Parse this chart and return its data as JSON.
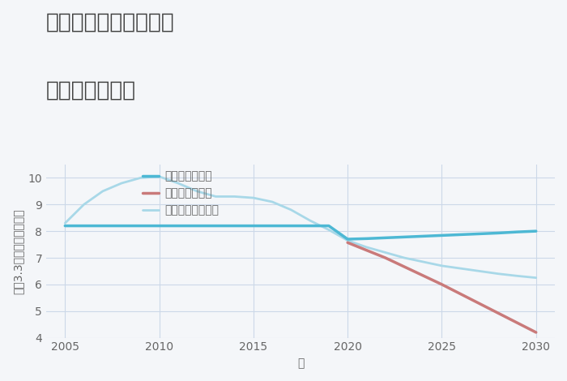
{
  "title_line1": "三重県鈴鹿市伊船町の",
  "title_line2": "土地の価格推移",
  "xlabel": "年",
  "ylabel": "坪（3.3㎡）単価（万円）",
  "background_color": "#f4f6f9",
  "plot_background": "#f4f6f9",
  "ylim": [
    4,
    10.5
  ],
  "xlim": [
    2004,
    2031
  ],
  "yticks": [
    4,
    5,
    6,
    7,
    8,
    9,
    10
  ],
  "xticks": [
    2005,
    2010,
    2015,
    2020,
    2025,
    2030
  ],
  "good_scenario": {
    "x": [
      2005,
      2006,
      2007,
      2008,
      2009,
      2010,
      2011,
      2012,
      2013,
      2014,
      2015,
      2016,
      2017,
      2018,
      2019,
      2020,
      2021,
      2022,
      2023,
      2024,
      2025,
      2026,
      2027,
      2028,
      2029,
      2030
    ],
    "y": [
      8.2,
      8.2,
      8.2,
      8.2,
      8.2,
      8.2,
      8.2,
      8.2,
      8.2,
      8.2,
      8.2,
      8.2,
      8.2,
      8.2,
      8.2,
      7.7,
      7.72,
      7.75,
      7.78,
      7.81,
      7.84,
      7.87,
      7.9,
      7.93,
      7.97,
      8.0
    ],
    "color": "#4db8d4",
    "linewidth": 2.5,
    "label": "グッドシナリオ"
  },
  "bad_scenario": {
    "x": [
      2020,
      2022,
      2025,
      2030
    ],
    "y": [
      7.57,
      7.0,
      6.0,
      4.2
    ],
    "color": "#c97a7a",
    "linewidth": 2.5,
    "label": "バッドシナリオ"
  },
  "normal_scenario": {
    "x": [
      2005,
      2006,
      2007,
      2008,
      2009,
      2010,
      2011,
      2012,
      2013,
      2014,
      2015,
      2016,
      2017,
      2018,
      2019,
      2020,
      2021,
      2022,
      2023,
      2024,
      2025,
      2026,
      2027,
      2028,
      2029,
      2030
    ],
    "y": [
      8.3,
      9.0,
      9.5,
      9.8,
      10.0,
      10.05,
      9.8,
      9.5,
      9.3,
      9.3,
      9.25,
      9.1,
      8.8,
      8.4,
      8.05,
      7.65,
      7.4,
      7.2,
      7.0,
      6.85,
      6.7,
      6.6,
      6.5,
      6.4,
      6.32,
      6.25
    ],
    "color": "#a8d8e8",
    "linewidth": 2.0,
    "label": "ノーマルシナリオ"
  },
  "title_fontsize": 19,
  "axis_label_fontsize": 10,
  "tick_fontsize": 10,
  "legend_fontsize": 10,
  "title_color": "#404040",
  "grid_color": "#ccd8e8",
  "tick_color": "#666666"
}
